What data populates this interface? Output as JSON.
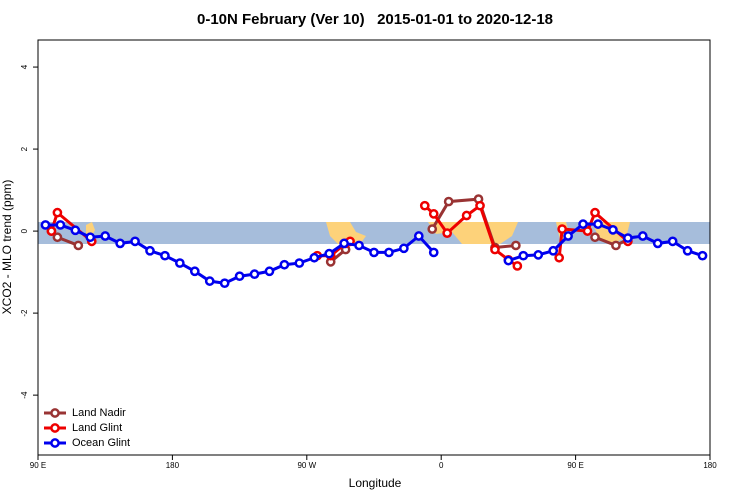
{
  "chart_data": {
    "type": "line",
    "title": "0-10N February (Ver 10)   2015-01-01 to 2020-12-18",
    "xlabel": "Longitude",
    "ylabel": "XCO2 - MLO trend (ppm)",
    "xlim": [
      90,
      540
    ],
    "ylim": [
      -5.46,
      4.66
    ],
    "xticks": [
      {
        "value": 90,
        "label": "90 E"
      },
      {
        "value": 180,
        "label": "180"
      },
      {
        "value": 270,
        "label": "90 W"
      },
      {
        "value": 360,
        "label": "0"
      },
      {
        "value": 450,
        "label": "90 E"
      },
      {
        "value": 540,
        "label": "180"
      }
    ],
    "yticks": [
      -4,
      -2,
      0,
      2,
      4
    ],
    "legend": "bottom-left",
    "series": [
      {
        "name": "Land Nadir",
        "color": "#993333",
        "x": [
          99,
          103,
          117,
          200,
          286,
          296,
          330,
          354,
          365,
          385,
          396,
          410,
          430,
          463,
          477,
          485
        ],
        "values": [
          0.0,
          -0.15,
          -0.35,
          null,
          -0.75,
          -0.45,
          null,
          0.05,
          0.72,
          0.78,
          -0.4,
          -0.35,
          null,
          -0.15,
          -0.35,
          -0.2
        ]
      },
      {
        "name": "Land Glint",
        "color": "#ee0000",
        "x": [
          99,
          103,
          126,
          200,
          277,
          286,
          296,
          299,
          330,
          349,
          355,
          364,
          377,
          386,
          396,
          405,
          411,
          425,
          439,
          441,
          458,
          463,
          485
        ],
        "values": [
          0.0,
          0.45,
          -0.25,
          null,
          -0.6,
          -0.6,
          -0.3,
          -0.25,
          null,
          0.62,
          0.42,
          -0.05,
          0.38,
          0.62,
          -0.45,
          -0.7,
          -0.85,
          null,
          -0.65,
          0.05,
          0.0,
          0.45,
          -0.25
        ]
      },
      {
        "name": "Ocean Glint",
        "color": "#0000ee",
        "x": [
          95,
          105,
          115,
          125,
          135,
          145,
          155,
          165,
          175,
          185,
          195,
          205,
          215,
          225,
          235,
          245,
          255,
          265,
          275,
          285,
          295,
          305,
          315,
          325,
          335,
          345,
          355,
          365,
          375,
          385,
          395,
          405,
          415,
          425,
          435,
          445,
          455,
          465,
          475,
          485,
          495,
          505,
          515,
          525,
          535
        ],
        "values": [
          0.15,
          0.15,
          0.02,
          -0.15,
          -0.12,
          -0.3,
          -0.25,
          -0.48,
          -0.6,
          -0.78,
          -0.98,
          -1.22,
          -1.27,
          -1.1,
          -1.05,
          -0.98,
          -0.82,
          -0.78,
          -0.65,
          -0.55,
          -0.3,
          -0.35,
          -0.52,
          -0.52,
          -0.42,
          -0.12,
          -0.52,
          null,
          null,
          null,
          null,
          -0.72,
          -0.6,
          -0.58,
          -0.48,
          -0.12,
          0.17,
          0.17,
          0.03,
          -0.17,
          -0.12,
          -0.3,
          -0.25,
          -0.48,
          -0.6
        ]
      }
    ]
  }
}
